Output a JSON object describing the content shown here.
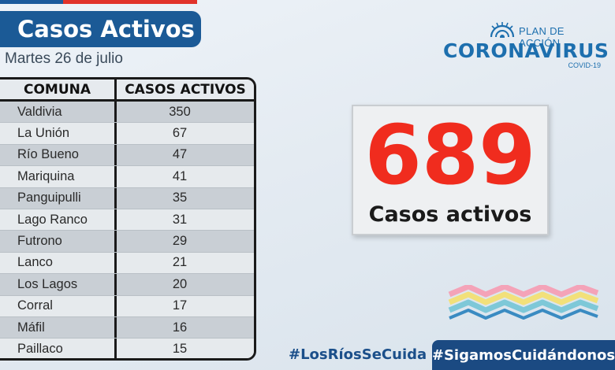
{
  "header": {
    "title": "Casos Activos",
    "date": "Martes 26 de julio"
  },
  "table": {
    "columns": [
      "COMUNA",
      "CASOS ACTIVOS"
    ],
    "rows": [
      {
        "comuna": "Valdivia",
        "casos": "350"
      },
      {
        "comuna": "La Unión",
        "casos": "67"
      },
      {
        "comuna": "Río Bueno",
        "casos": "47"
      },
      {
        "comuna": "Mariquina",
        "casos": "41"
      },
      {
        "comuna": "Panguipulli",
        "casos": "35"
      },
      {
        "comuna": "Lago Ranco",
        "casos": "31"
      },
      {
        "comuna": "Futrono",
        "casos": "29"
      },
      {
        "comuna": "Lanco",
        "casos": "21"
      },
      {
        "comuna": "Los Lagos",
        "casos": "20"
      },
      {
        "comuna": "Corral",
        "casos": "17"
      },
      {
        "comuna": "Máfil",
        "casos": "16"
      },
      {
        "comuna": "Paillaco",
        "casos": "15"
      }
    ]
  },
  "logo": {
    "plan": "PLAN DE ACCIÓN",
    "main": "CORONAVIRUS",
    "sub": "COVID-19",
    "color": "#1d6fae"
  },
  "summary": {
    "total": "689",
    "label": "Casos activos",
    "color": "#f02c1e"
  },
  "hashtags": {
    "first": "#LosRíosSeCuida",
    "second": "#SigamosCuidándonos"
  },
  "colors": {
    "brand_blue": "#1b5a96",
    "flag_red": "#e1332a"
  }
}
